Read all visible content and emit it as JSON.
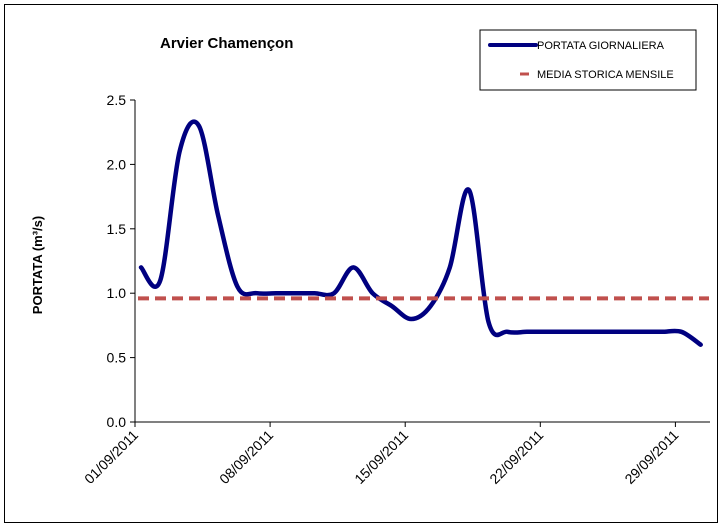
{
  "chart_data": {
    "type": "line",
    "title": "Arvier  Chamençon",
    "xlabel": "",
    "ylabel": "PORTATA (m³/s)",
    "ylim": [
      0,
      2.5
    ],
    "yticks": [
      "0.0",
      "0.5",
      "1.0",
      "1.5",
      "2.0",
      "2.5"
    ],
    "xticks": [
      "01/09/2011",
      "08/09/2011",
      "15/09/2011",
      "22/09/2011",
      "29/09/2011"
    ],
    "grid": false,
    "legend_position": "top-right",
    "x": [
      "01/09/2011",
      "02/09/2011",
      "03/09/2011",
      "04/09/2011",
      "05/09/2011",
      "06/09/2011",
      "07/09/2011",
      "08/09/2011",
      "09/09/2011",
      "10/09/2011",
      "11/09/2011",
      "12/09/2011",
      "13/09/2011",
      "14/09/2011",
      "15/09/2011",
      "16/09/2011",
      "17/09/2011",
      "18/09/2011",
      "19/09/2011",
      "20/09/2011",
      "21/09/2011",
      "22/09/2011",
      "23/09/2011",
      "24/09/2011",
      "25/09/2011",
      "26/09/2011",
      "27/09/2011",
      "28/09/2011",
      "29/09/2011",
      "30/09/2011"
    ],
    "series": [
      {
        "name": "PORTATA GIORNALIERA",
        "color": "#000080",
        "style": "solid",
        "values": [
          1.2,
          1.1,
          2.1,
          2.3,
          1.6,
          1.05,
          1.0,
          1.0,
          1.0,
          1.0,
          1.0,
          1.2,
          1.0,
          0.9,
          0.8,
          0.9,
          1.2,
          1.8,
          0.78,
          0.7,
          0.7,
          0.7,
          0.7,
          0.7,
          0.7,
          0.7,
          0.7,
          0.7,
          0.7,
          0.6
        ]
      },
      {
        "name": "MEDIA STORICA MENSILE",
        "color": "#c0504d",
        "style": "dashed",
        "values": [
          0.96,
          0.96,
          0.96,
          0.96,
          0.96,
          0.96,
          0.96,
          0.96,
          0.96,
          0.96,
          0.96,
          0.96,
          0.96,
          0.96,
          0.96,
          0.96,
          0.96,
          0.96,
          0.96,
          0.96,
          0.96,
          0.96,
          0.96,
          0.96,
          0.96,
          0.96,
          0.96,
          0.96,
          0.96,
          0.96
        ]
      }
    ]
  }
}
